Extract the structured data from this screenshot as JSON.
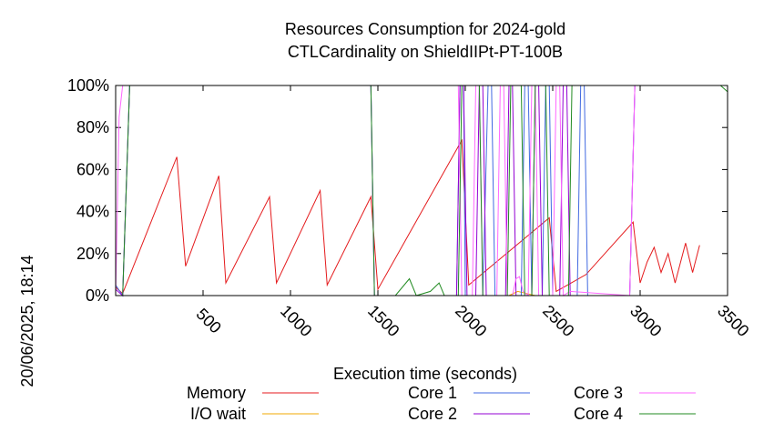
{
  "chart_data": {
    "type": "line",
    "title": [
      "Resources Consumption for 2024-gold",
      "CTLCardinality on ShieldIIPt-PT-100B"
    ],
    "xlabel": "Execution time (seconds)",
    "ylabel": "",
    "side_label": "20/06/2025, 18:14",
    "xlim": [
      0,
      3500
    ],
    "ylim": [
      0,
      100
    ],
    "x_ticks": [
      500,
      1000,
      1500,
      2000,
      2500,
      3000,
      3500
    ],
    "x_tick_labels": [
      "500",
      "1000",
      "1500",
      "2000",
      "2500",
      "3000",
      "3500"
    ],
    "y_ticks": [
      0,
      20,
      40,
      60,
      80,
      100
    ],
    "y_tick_labels": [
      "0%",
      "20%",
      "40%",
      "60%",
      "80%",
      "100%"
    ],
    "grid": false,
    "legend_position": "bottom",
    "series": [
      {
        "name": "Memory",
        "color": "#e41a1c",
        "points": [
          [
            0,
            4
          ],
          [
            40,
            1
          ],
          [
            350,
            66
          ],
          [
            400,
            14
          ],
          [
            590,
            57
          ],
          [
            630,
            6
          ],
          [
            880,
            47
          ],
          [
            920,
            6
          ],
          [
            1170,
            50
          ],
          [
            1210,
            5
          ],
          [
            1460,
            47
          ],
          [
            1500,
            3
          ],
          [
            1980,
            74
          ],
          [
            2020,
            5
          ],
          [
            2480,
            37
          ],
          [
            2520,
            2
          ],
          [
            2690,
            10
          ],
          [
            2960,
            35
          ],
          [
            3000,
            6
          ],
          [
            3040,
            16
          ],
          [
            3080,
            23
          ],
          [
            3120,
            11
          ],
          [
            3160,
            20
          ],
          [
            3200,
            6
          ],
          [
            3260,
            25
          ],
          [
            3300,
            11
          ],
          [
            3340,
            24
          ]
        ]
      },
      {
        "name": "I/O wait",
        "color": "#f2a900",
        "points": [
          [
            0,
            0
          ],
          [
            2250,
            0
          ],
          [
            2300,
            2
          ],
          [
            2350,
            1
          ],
          [
            2400,
            0
          ],
          [
            2700,
            0
          ],
          [
            3500,
            0
          ]
        ]
      },
      {
        "name": "Core 1",
        "color": "#4169e1",
        "points": [
          [
            0,
            5
          ],
          [
            40,
            0
          ],
          [
            80,
            100
          ],
          [
            1460,
            100
          ],
          [
            1480,
            0
          ],
          [
            1950,
            0
          ],
          [
            1970,
            100
          ],
          [
            1990,
            100
          ],
          [
            2000,
            0
          ],
          [
            2100,
            0
          ],
          [
            2130,
            100
          ],
          [
            2150,
            100
          ],
          [
            2170,
            0
          ],
          [
            2320,
            0
          ],
          [
            2340,
            100
          ],
          [
            2360,
            100
          ],
          [
            2380,
            0
          ],
          [
            2440,
            0
          ],
          [
            2460,
            100
          ],
          [
            2480,
            100
          ],
          [
            2500,
            0
          ],
          [
            2640,
            0
          ],
          [
            2660,
            100
          ],
          [
            2680,
            100
          ],
          [
            2700,
            0
          ],
          [
            2940,
            0
          ],
          [
            2970,
            100
          ],
          [
            3500,
            100
          ]
        ]
      },
      {
        "name": "Core 2",
        "color": "#9400d3",
        "points": [
          [
            0,
            3
          ],
          [
            40,
            0
          ],
          [
            80,
            100
          ],
          [
            1460,
            100
          ],
          [
            1480,
            0
          ],
          [
            1950,
            0
          ],
          [
            1970,
            100
          ],
          [
            1990,
            100
          ],
          [
            2010,
            0
          ],
          [
            2060,
            0
          ],
          [
            2080,
            100
          ],
          [
            2100,
            100
          ],
          [
            2120,
            0
          ],
          [
            2230,
            0
          ],
          [
            2250,
            100
          ],
          [
            2270,
            100
          ],
          [
            2290,
            0
          ],
          [
            2380,
            0
          ],
          [
            2400,
            100
          ],
          [
            2420,
            100
          ],
          [
            2440,
            0
          ],
          [
            2540,
            0
          ],
          [
            2560,
            100
          ],
          [
            2580,
            100
          ],
          [
            2600,
            0
          ],
          [
            2940,
            0
          ],
          [
            2970,
            100
          ],
          [
            3500,
            100
          ]
        ]
      },
      {
        "name": "Core 3",
        "color": "#ff66ff",
        "points": [
          [
            0,
            0
          ],
          [
            20,
            85
          ],
          [
            40,
            100
          ],
          [
            1470,
            100
          ],
          [
            1960,
            100
          ],
          [
            1980,
            0
          ],
          [
            2040,
            0
          ],
          [
            2060,
            100
          ],
          [
            2080,
            100
          ],
          [
            2100,
            0
          ],
          [
            2180,
            0
          ],
          [
            2200,
            100
          ],
          [
            2220,
            100
          ],
          [
            2240,
            0
          ],
          [
            2270,
            0
          ],
          [
            2290,
            8
          ],
          [
            2310,
            9
          ],
          [
            2330,
            2
          ],
          [
            2360,
            0
          ],
          [
            2380,
            100
          ],
          [
            2400,
            100
          ],
          [
            2420,
            0
          ],
          [
            2500,
            0
          ],
          [
            2520,
            100
          ],
          [
            2540,
            100
          ],
          [
            2560,
            0
          ],
          [
            2600,
            2
          ],
          [
            2940,
            0
          ],
          [
            2970,
            100
          ],
          [
            3500,
            100
          ]
        ]
      },
      {
        "name": "Core 4",
        "color": "#228b22",
        "points": [
          [
            0,
            0
          ],
          [
            40,
            0
          ],
          [
            80,
            100
          ],
          [
            1460,
            100
          ],
          [
            1480,
            0
          ],
          [
            1600,
            0
          ],
          [
            1680,
            8
          ],
          [
            1720,
            0
          ],
          [
            1800,
            2
          ],
          [
            1850,
            6
          ],
          [
            1880,
            0
          ],
          [
            1960,
            0
          ],
          [
            1980,
            100
          ],
          [
            2080,
            100
          ],
          [
            2100,
            0
          ],
          [
            2240,
            0
          ],
          [
            2260,
            100
          ],
          [
            2320,
            100
          ],
          [
            2340,
            0
          ],
          [
            2380,
            0
          ],
          [
            2400,
            100
          ],
          [
            2460,
            100
          ],
          [
            2480,
            0
          ],
          [
            2590,
            0
          ],
          [
            2610,
            100
          ],
          [
            3460,
            100
          ],
          [
            3500,
            97
          ]
        ]
      }
    ]
  }
}
